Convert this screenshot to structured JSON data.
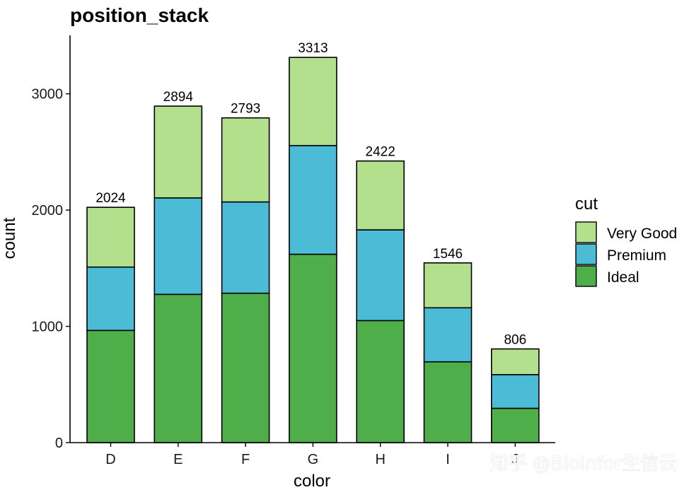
{
  "watermark": "知乎 @Bioinfor生信云",
  "chart_data": {
    "type": "bar",
    "stacked": true,
    "title": "position_stack",
    "xlabel": "color",
    "ylabel": "count",
    "categories": [
      "D",
      "E",
      "F",
      "G",
      "H",
      "I",
      "J"
    ],
    "series": [
      {
        "name": "Ideal",
        "color": "#4dae4a",
        "values": [
          965,
          1275,
          1285,
          1620,
          1050,
          695,
          295
        ]
      },
      {
        "name": "Premium",
        "color": "#4cbbd6",
        "values": [
          545,
          830,
          785,
          935,
          780,
          465,
          290
        ]
      },
      {
        "name": "Very Good",
        "color": "#b3e08c",
        "values": [
          514,
          789,
          723,
          758,
          592,
          386,
          221
        ]
      }
    ],
    "totals": [
      2024,
      2894,
      2793,
      3313,
      2422,
      1546,
      806
    ],
    "ylim": [
      0,
      3500
    ],
    "yticks": [
      0,
      1000,
      2000,
      3000
    ],
    "grid": false,
    "legend": {
      "title": "cut",
      "position": "right",
      "order": [
        "Very Good",
        "Premium",
        "Ideal"
      ]
    }
  }
}
